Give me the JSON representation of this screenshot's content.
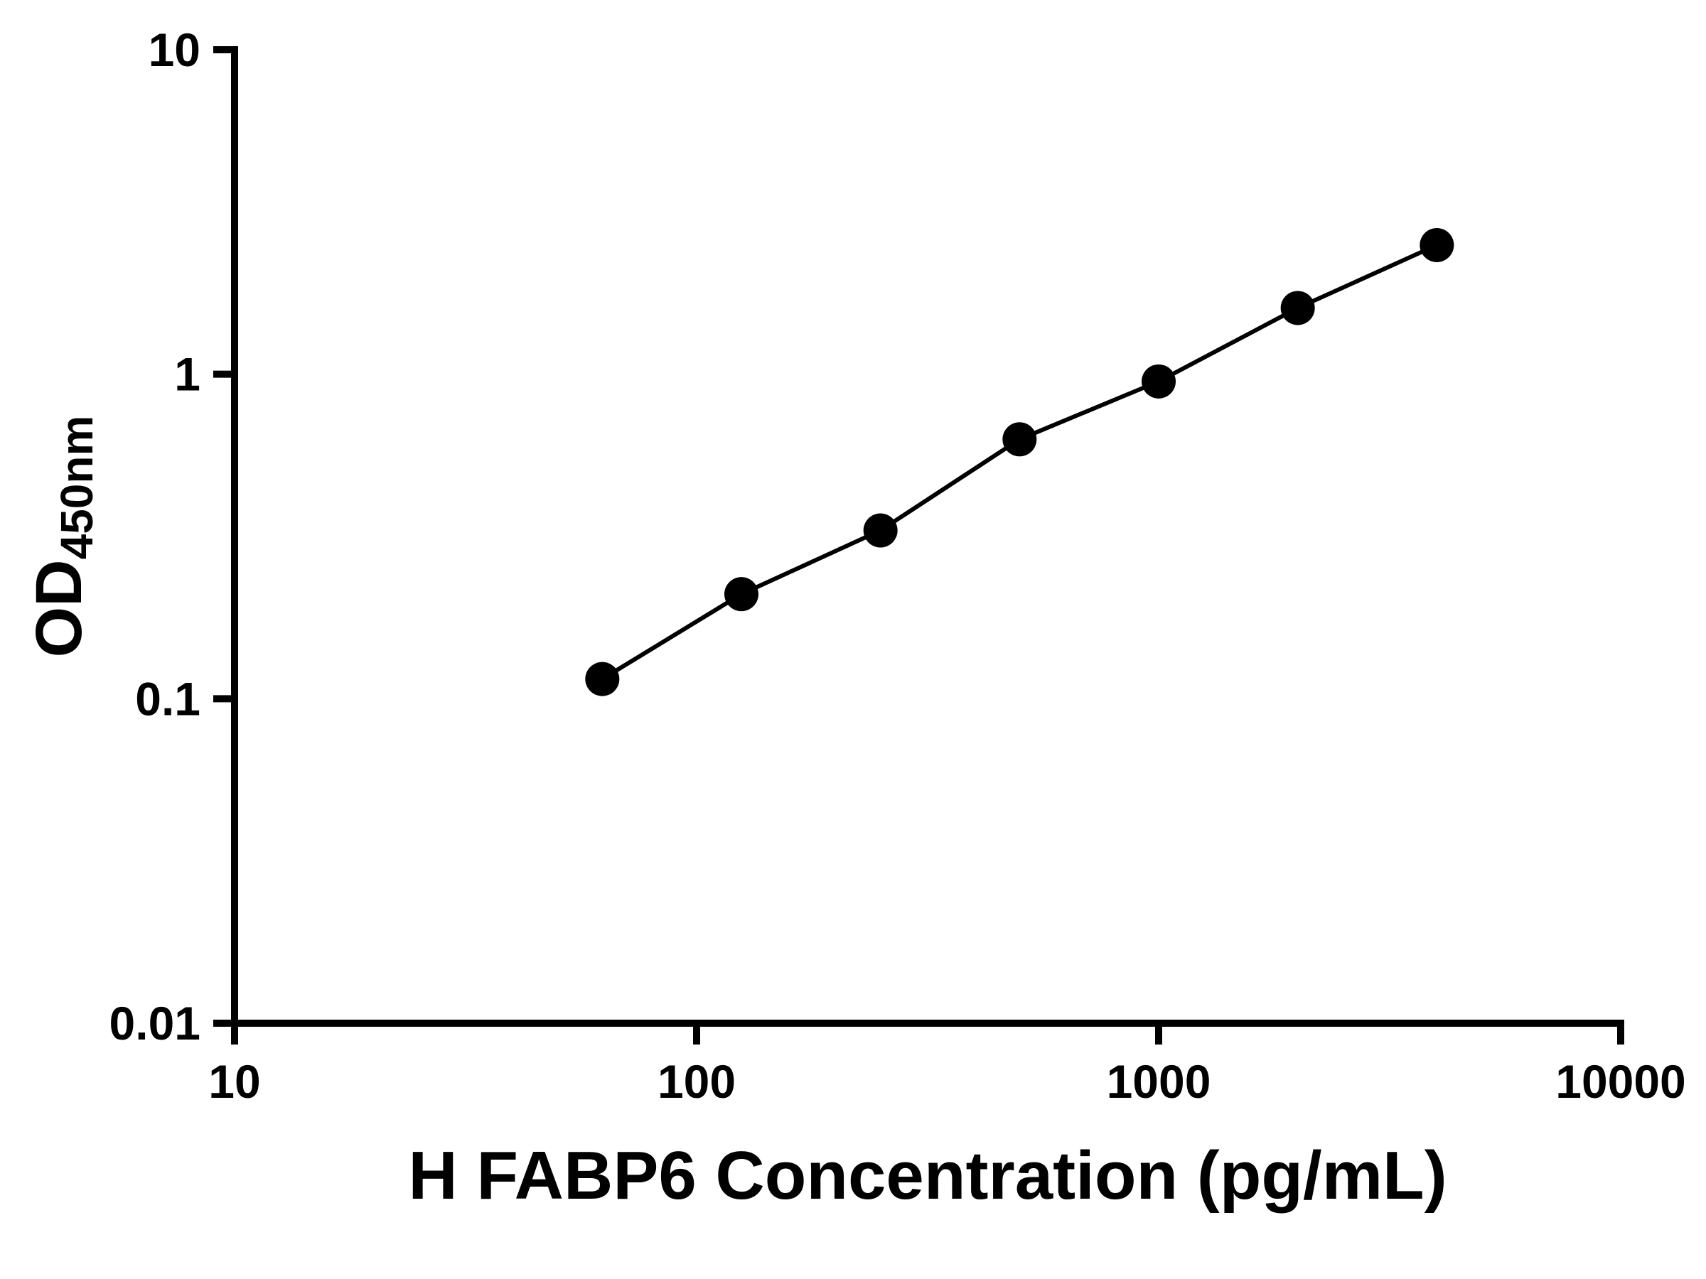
{
  "chart_data": {
    "type": "line",
    "title": "",
    "xlabel": "H FABP6 Concentration (pg/mL)",
    "ylabel_main": "OD",
    "ylabel_sub": "450nm",
    "xscale": "log",
    "yscale": "log",
    "xlim": [
      10,
      10000
    ],
    "ylim": [
      0.01,
      10
    ],
    "x": [
      62.5,
      125,
      250,
      500,
      1000,
      2000,
      4000
    ],
    "y": [
      0.115,
      0.21,
      0.33,
      0.63,
      0.95,
      1.6,
      2.5
    ],
    "x_ticks": [
      10,
      100,
      1000,
      10000
    ],
    "x_tick_labels": [
      "10",
      "100",
      "1000",
      "10000"
    ],
    "y_ticks": [
      0.01,
      0.1,
      1,
      10
    ],
    "y_tick_labels": [
      "0.01",
      "0.1",
      "1",
      "10"
    ],
    "grid": false,
    "legend": "none",
    "marker": "filled-circle",
    "marker_color": "#000000",
    "line_color": "#000000",
    "axis_color": "#000000",
    "background_color": "#ffffff"
  }
}
